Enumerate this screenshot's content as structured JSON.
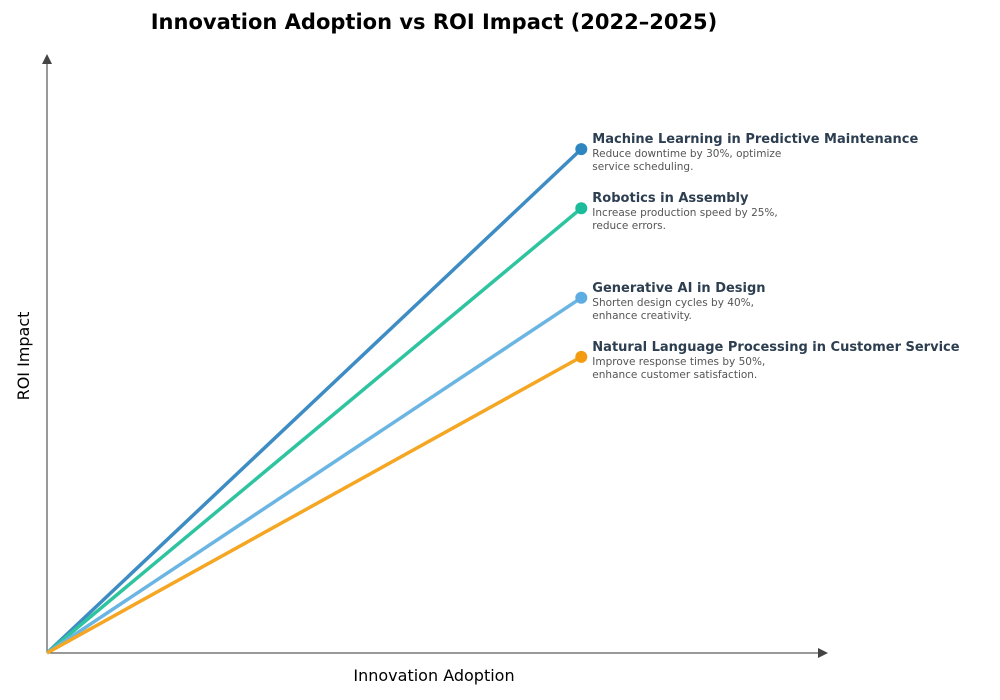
{
  "chart_data": {
    "type": "line",
    "title": "Innovation Adoption vs ROI Impact (2022–2025)",
    "xlabel": "Innovation Adoption",
    "ylabel": "ROI Impact",
    "xlim": [
      0,
      1
    ],
    "ylim": [
      0,
      1
    ],
    "grid": false,
    "ticks": false,
    "series": [
      {
        "name": "Machine Learning in Predictive Maintenance",
        "description": [
          "Reduce downtime by 30%, optimize",
          "service scheduling."
        ],
        "x": [
          0,
          0.685
        ],
        "y": [
          0,
          0.844
        ],
        "color": "#2e86c1",
        "line_color": "#3d8cc4"
      },
      {
        "name": "Robotics in Assembly",
        "description": [
          "Increase production speed by 25%,",
          "reduce errors."
        ],
        "x": [
          0,
          0.685
        ],
        "y": [
          0,
          0.745
        ],
        "color": "#1abc9c",
        "line_color": "#2fc4a0"
      },
      {
        "name": "Generative AI in Design",
        "description": [
          "Shorten design cycles by 40%,",
          "enhance creativity."
        ],
        "x": [
          0,
          0.685
        ],
        "y": [
          0,
          0.595
        ],
        "color": "#5dade2",
        "line_color": "#6bb5e3"
      },
      {
        "name": "Natural Language Processing in Customer Service",
        "description": [
          "Improve response times by 50%,",
          "enhance customer satisfaction."
        ],
        "x": [
          0,
          0.685
        ],
        "y": [
          0,
          0.496
        ],
        "color": "#f39c12",
        "line_color": "#f5a623"
      }
    ]
  }
}
